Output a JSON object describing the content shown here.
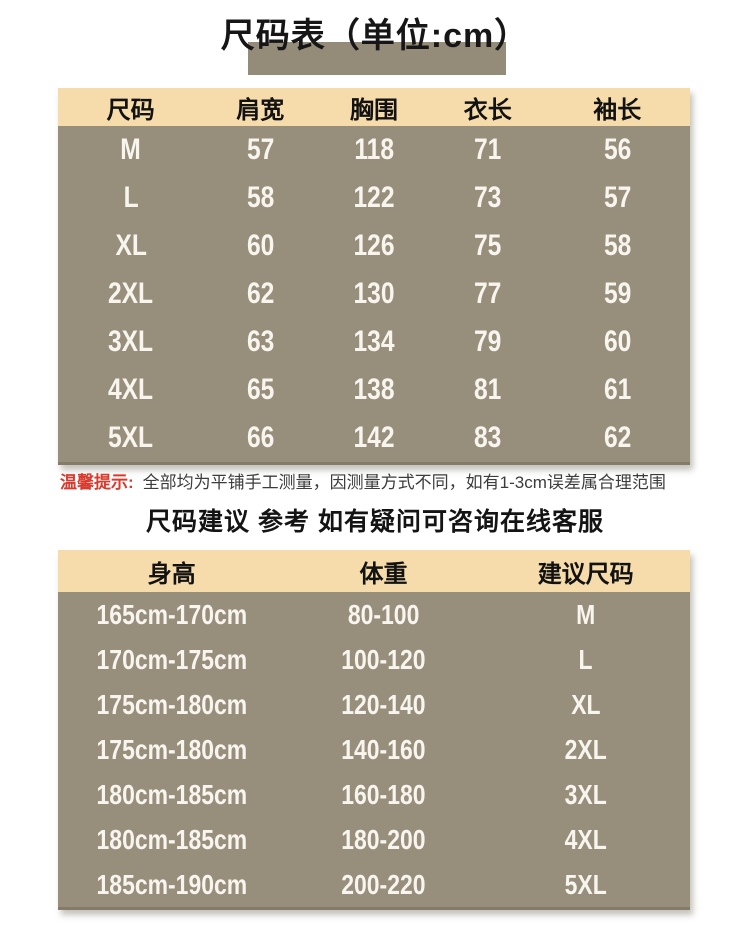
{
  "title": {
    "text": "尺码表（单位:cm）"
  },
  "size_table": {
    "headers": [
      "尺码",
      "肩宽",
      "胸围",
      "衣长",
      "袖长"
    ],
    "rows": [
      [
        "M",
        "57",
        "118",
        "71",
        "56"
      ],
      [
        "L",
        "58",
        "122",
        "73",
        "57"
      ],
      [
        "XL",
        "60",
        "126",
        "75",
        "58"
      ],
      [
        "2XL",
        "62",
        "130",
        "77",
        "59"
      ],
      [
        "3XL",
        "63",
        "134",
        "79",
        "60"
      ],
      [
        "4XL",
        "65",
        "138",
        "81",
        "61"
      ],
      [
        "5XL",
        "66",
        "142",
        "83",
        "62"
      ]
    ]
  },
  "tip": {
    "label": "温馨提示:",
    "text": "全部均为平铺手工测量，因测量方式不同，如有1-3cm误差属合理范围"
  },
  "suggestion_heading": "尺码建议 参考 如有疑问可咨询在线客服",
  "suggestion_table": {
    "headers": [
      "身高",
      "体重",
      "建议尺码"
    ],
    "rows": [
      [
        "165cm-170cm",
        "80-100",
        "M"
      ],
      [
        "170cm-175cm",
        "100-120",
        "L"
      ],
      [
        "175cm-180cm",
        "120-140",
        "XL"
      ],
      [
        "175cm-180cm",
        "140-160",
        "2XL"
      ],
      [
        "180cm-185cm",
        "160-180",
        "3XL"
      ],
      [
        "180cm-185cm",
        "180-200",
        "4XL"
      ],
      [
        "185cm-190cm",
        "200-220",
        "5XL"
      ]
    ]
  },
  "colors": {
    "header_bg": "#f6dcab",
    "body_bg": "#978e7c",
    "title_block_bg": "#948b79",
    "body_text": "#f8f5ee",
    "tip_label": "#d93a2e",
    "edge": "#847b6a"
  }
}
